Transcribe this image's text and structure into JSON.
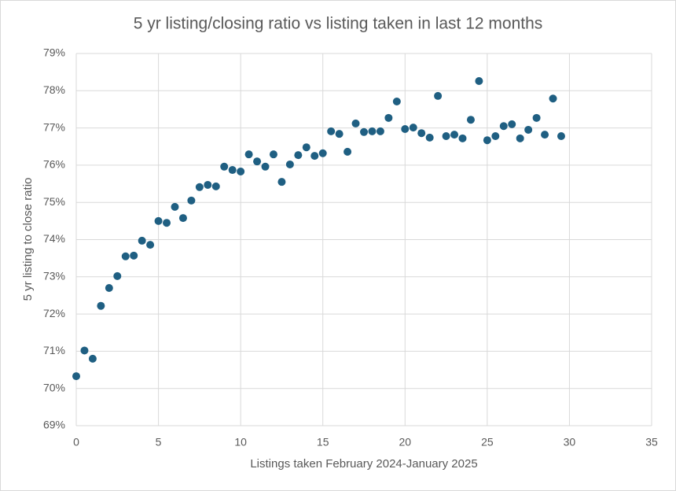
{
  "chart_data": {
    "type": "scatter",
    "title": "5 yr listing/closing ratio vs listing taken in last 12 months",
    "x_label": "Listings taken February 2024-January 2025",
    "y_label": "5 yr listing to close ratio",
    "color": "#1f5f82",
    "grid": true,
    "x": [
      0,
      0.5,
      1,
      1.5,
      2,
      2.5,
      3,
      3.5,
      4,
      4.5,
      5,
      5.5,
      6,
      6.5,
      7,
      7.5,
      8,
      8.5,
      9,
      9.5,
      10,
      10.5,
      11,
      11.5,
      12,
      12.5,
      13,
      13.5,
      14,
      14.5,
      15,
      15.5,
      16,
      16.5,
      17,
      17.5,
      18,
      18.5,
      19,
      19.5,
      20,
      20.5,
      21,
      21.5,
      22,
      22.5,
      23,
      23.5,
      24,
      24.5,
      25,
      25.5,
      26,
      26.5,
      27,
      27.5,
      28,
      28.5,
      29,
      29.5
    ],
    "values": [
      70.33,
      71.02,
      70.8,
      72.22,
      72.7,
      73.02,
      73.55,
      73.57,
      73.97,
      73.86,
      74.5,
      74.45,
      74.88,
      74.58,
      75.05,
      75.41,
      75.47,
      75.43,
      75.96,
      75.87,
      75.83,
      76.29,
      76.1,
      75.96,
      76.29,
      75.55,
      76.02,
      76.27,
      76.48,
      76.25,
      76.32,
      76.91,
      76.84,
      76.36,
      77.12,
      76.89,
      76.91,
      76.91,
      77.27,
      77.71,
      76.97,
      77.01,
      76.86,
      76.74,
      77.86,
      76.78,
      76.82,
      76.72,
      77.22,
      78.26,
      76.67,
      76.78,
      77.05,
      77.1,
      76.72,
      76.95,
      77.27,
      76.82,
      77.79,
      76.78
    ],
    "xlim": [
      0,
      35
    ],
    "xticks": [
      0,
      5,
      10,
      15,
      20,
      25,
      30,
      35
    ],
    "ylim": [
      69,
      79
    ],
    "yticks": [
      {
        "value": 69,
        "label": "69%"
      },
      {
        "value": 70,
        "label": "70%"
      },
      {
        "value": 71,
        "label": "71%"
      },
      {
        "value": 72,
        "label": "72%"
      },
      {
        "value": 73,
        "label": "73%"
      },
      {
        "value": 74,
        "label": "74%"
      },
      {
        "value": 75,
        "label": "75%"
      },
      {
        "value": 76,
        "label": "76%"
      },
      {
        "value": 77,
        "label": "77%"
      },
      {
        "value": 78,
        "label": "78%"
      },
      {
        "value": 79,
        "label": "79%"
      }
    ]
  }
}
